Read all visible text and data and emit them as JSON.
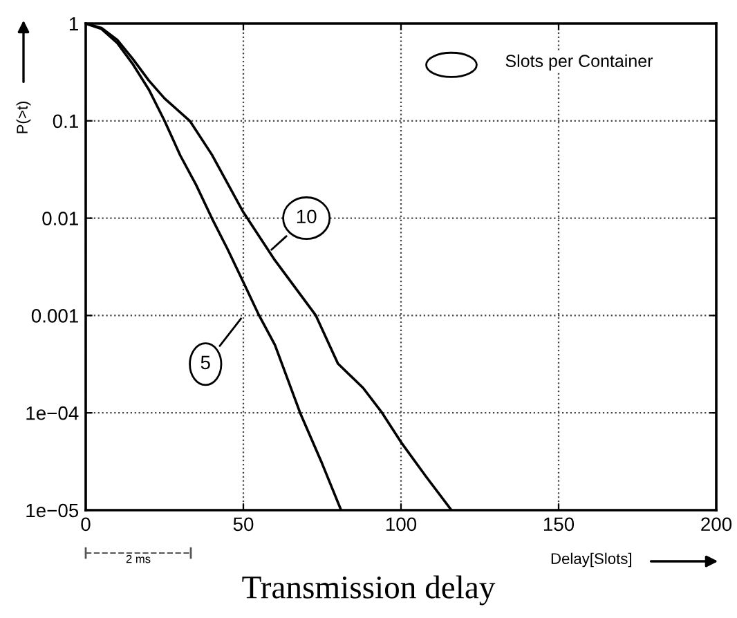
{
  "chart_data": {
    "type": "line",
    "xlabel": "Delay[Slots]",
    "ylabel": "P(>t)",
    "legend_title": "Slots per Container",
    "series": [
      {
        "name": "5",
        "color": "#000000",
        "x": [
          0,
          5,
          10,
          15,
          20,
          25,
          30,
          35,
          40,
          45,
          50,
          55,
          60,
          68,
          75,
          81
        ],
        "values": [
          1,
          0.88,
          0.63,
          0.38,
          0.21,
          0.1,
          0.044,
          0.022,
          0.01,
          0.0048,
          0.0022,
          0.001,
          0.0005,
          0.0001,
          3e-05,
          1e-05
        ]
      },
      {
        "name": "10",
        "color": "#000000",
        "x": [
          0,
          5,
          10,
          15,
          20,
          25,
          33,
          40,
          50,
          60,
          73,
          80,
          88,
          94,
          100,
          108,
          116
        ],
        "values": [
          1,
          0.9,
          0.68,
          0.43,
          0.26,
          0.17,
          0.1,
          0.045,
          0.0115,
          0.0037,
          0.001,
          0.00032,
          0.00018,
          0.0001,
          5e-05,
          2.2e-05,
          1e-05
        ]
      }
    ],
    "xlim": [
      0,
      200
    ],
    "xticks": [
      0,
      50,
      100,
      150,
      200
    ],
    "ylim": [
      1e-05,
      1
    ],
    "log": true,
    "yticks": [
      {
        "value": 1,
        "label": "1"
      },
      {
        "value": 0.1,
        "label": "0.1"
      },
      {
        "value": 0.01,
        "label": "0.01"
      },
      {
        "value": 0.001,
        "label": "0.001"
      },
      {
        "value": 0.0001,
        "label": "1e−04"
      },
      {
        "value": 1e-05,
        "label": "1e−05"
      }
    ],
    "grid": true,
    "line_style": "solid",
    "annotations": [
      "2 ms",
      "Transmission delay"
    ]
  }
}
